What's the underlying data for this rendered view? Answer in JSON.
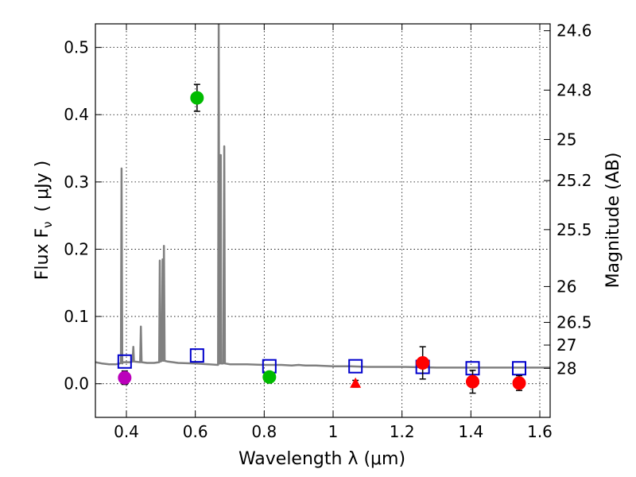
{
  "chart_data": {
    "type": "scatter",
    "xlabel": "Wavelength  λ (μm)",
    "ylabel": "Flux  F",
    "ylabel_sub": "ν",
    "ylabel_unit": "( μJy )",
    "y2label": "Magnitude (AB)",
    "xlim": [
      0.31,
      1.63
    ],
    "ylim": [
      -0.05,
      0.535
    ],
    "grid": true,
    "x_ticks": [
      0.4,
      0.6,
      0.8,
      1.0,
      1.2,
      1.4,
      1.6
    ],
    "x_tick_labels": [
      "0.4",
      "0.6",
      "0.8",
      "1",
      "1.2",
      "1.4",
      "1.6"
    ],
    "y_ticks": [
      0.0,
      0.1,
      0.2,
      0.3,
      0.4,
      0.5
    ],
    "y_tick_labels": [
      "0.0",
      "0.1",
      "0.2",
      "0.3",
      "0.4",
      "0.5"
    ],
    "mag_ticks": [
      {
        "flux": 0.5248,
        "label": "24.6"
      },
      {
        "flux": 0.4365,
        "label": "24.8"
      },
      {
        "flux": 0.3631,
        "label": "25"
      },
      {
        "flux": 0.302,
        "label": "25.2"
      },
      {
        "flux": 0.2291,
        "label": "25.5"
      },
      {
        "flux": 0.1445,
        "label": "26"
      },
      {
        "flux": 0.0912,
        "label": "26.5"
      },
      {
        "flux": 0.0575,
        "label": "27"
      },
      {
        "flux": 0.0229,
        "label": "28"
      }
    ],
    "model_spectrum": {
      "name": "model SED",
      "color": "#808080",
      "x": [
        0.31,
        0.33,
        0.35,
        0.37,
        0.38,
        0.384,
        0.386,
        0.388,
        0.39,
        0.41,
        0.418,
        0.42,
        0.422,
        0.44,
        0.442,
        0.444,
        0.46,
        0.48,
        0.495,
        0.497,
        0.499,
        0.503,
        0.505,
        0.507,
        0.509,
        0.511,
        0.52,
        0.55,
        0.6,
        0.64,
        0.666,
        0.668,
        0.67,
        0.672,
        0.674,
        0.675,
        0.677,
        0.679,
        0.681,
        0.684,
        0.686,
        0.688,
        0.7,
        0.75,
        0.8,
        0.85,
        0.88,
        0.9,
        0.92,
        0.95,
        1.0,
        1.05,
        1.1,
        1.2,
        1.3,
        1.4,
        1.5,
        1.6,
        1.63
      ],
      "y": [
        0.032,
        0.03,
        0.029,
        0.029,
        0.03,
        0.031,
        0.32,
        0.03,
        0.032,
        0.032,
        0.033,
        0.055,
        0.033,
        0.032,
        0.085,
        0.032,
        0.031,
        0.031,
        0.032,
        0.183,
        0.033,
        0.034,
        0.185,
        0.034,
        0.205,
        0.034,
        0.033,
        0.031,
        0.03,
        0.029,
        0.028,
        0.535,
        0.03,
        0.03,
        0.34,
        0.03,
        0.03,
        0.03,
        0.03,
        0.353,
        0.03,
        0.03,
        0.029,
        0.029,
        0.028,
        0.028,
        0.027,
        0.028,
        0.027,
        0.027,
        0.026,
        0.026,
        0.025,
        0.025,
        0.024,
        0.024,
        0.024,
        0.024,
        0.024
      ]
    },
    "series": [
      {
        "name": "model bandpass flux",
        "marker": "open-square",
        "color": "#0000cc",
        "points": [
          {
            "x": 0.395,
            "y": 0.033
          },
          {
            "x": 0.605,
            "y": 0.042
          },
          {
            "x": 0.815,
            "y": 0.026
          },
          {
            "x": 1.065,
            "y": 0.026
          },
          {
            "x": 1.26,
            "y": 0.025
          },
          {
            "x": 1.405,
            "y": 0.023
          },
          {
            "x": 1.54,
            "y": 0.023
          }
        ]
      },
      {
        "name": "magenta detection",
        "marker": "circle",
        "color": "#bb00bb",
        "points": [
          {
            "x": 0.395,
            "y": 0.009,
            "err": 0.01
          }
        ]
      },
      {
        "name": "green detections",
        "marker": "circle",
        "color": "#00bb00",
        "points": [
          {
            "x": 0.605,
            "y": 0.425,
            "err": 0.02
          },
          {
            "x": 0.815,
            "y": 0.01,
            "err": 0.005
          }
        ]
      },
      {
        "name": "red detections",
        "marker": "circle",
        "color": "#ff0000",
        "points": [
          {
            "x": 1.26,
            "y": 0.031,
            "err": 0.024
          },
          {
            "x": 1.405,
            "y": 0.003,
            "err": 0.017
          },
          {
            "x": 1.54,
            "y": 0.001,
            "err": 0.011
          }
        ]
      },
      {
        "name": "red upper limit",
        "marker": "triangle",
        "color": "#ff0000",
        "points": [
          {
            "x": 1.065,
            "y": 0.0,
            "err": 0.005
          }
        ]
      }
    ]
  }
}
